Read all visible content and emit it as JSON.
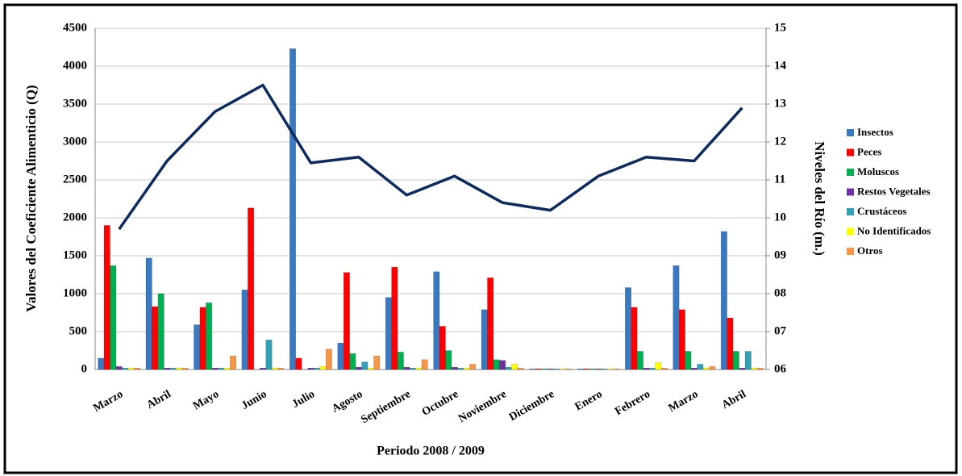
{
  "chart_data": {
    "type": "bar-line",
    "categories": [
      "Marzo",
      "Abril",
      "Mayo",
      "Junio",
      "Julio",
      "Agosto",
      "Septiembre",
      "Octubre",
      "Noviembre",
      "Diciembre",
      "Enero",
      "Febrero",
      "Marzo",
      "Abril"
    ],
    "x_label": "Periodo 2008 / 2009",
    "y_label": "Valores del Coeficiente Alimenticio (Q)",
    "y2_label": "Niveles del Río (m.)",
    "ylim": [
      0,
      4500
    ],
    "yticks": [
      0,
      500,
      1000,
      1500,
      2000,
      2500,
      3000,
      3500,
      4000,
      4500
    ],
    "y2lim": [
      6,
      15
    ],
    "y2ticks": [
      {
        "value": 6,
        "label": "06"
      },
      {
        "value": 7,
        "label": "07"
      },
      {
        "value": 8,
        "label": "08"
      },
      {
        "value": 9,
        "label": "09"
      },
      10,
      11,
      12,
      13,
      14,
      15
    ],
    "grid": true,
    "legend": "right",
    "series": [
      {
        "name": "Insectos",
        "color": "#3a78c0",
        "values": [
          150,
          1470,
          590,
          1050,
          4230,
          350,
          950,
          1290,
          790,
          10,
          10,
          1080,
          1370,
          1820
        ]
      },
      {
        "name": "Peces",
        "color": "#ff0000",
        "values": [
          1900,
          830,
          820,
          2130,
          150,
          1280,
          1350,
          570,
          1210,
          10,
          10,
          820,
          790,
          680
        ]
      },
      {
        "name": "Moluscos",
        "color": "#00b050",
        "values": [
          1370,
          1000,
          880,
          0,
          0,
          210,
          230,
          250,
          130,
          10,
          10,
          240,
          240,
          240
        ]
      },
      {
        "name": "Restos Vegetales",
        "color": "#7030a0",
        "values": [
          40,
          20,
          20,
          20,
          20,
          30,
          30,
          30,
          120,
          10,
          10,
          20,
          20,
          20
        ]
      },
      {
        "name": "Crustáceos",
        "color": "#31a0b5",
        "values": [
          20,
          20,
          20,
          390,
          20,
          100,
          20,
          20,
          30,
          10,
          10,
          20,
          70,
          240
        ]
      },
      {
        "name": "No Identificados",
        "color": "#ffff00",
        "values": [
          20,
          20,
          20,
          20,
          40,
          20,
          20,
          20,
          70,
          10,
          10,
          90,
          20,
          20
        ]
      },
      {
        "name": "Otros",
        "color": "#f79646",
        "values": [
          20,
          20,
          180,
          20,
          270,
          180,
          130,
          70,
          20,
          10,
          10,
          20,
          40,
          20
        ]
      },
      {
        "name": "Nivel del Río",
        "type": "line",
        "axis": "y2",
        "color": "#0d2b5e",
        "values": [
          9.7,
          11.5,
          12.8,
          13.5,
          11.45,
          11.6,
          10.6,
          11.1,
          10.4,
          10.2,
          11.1,
          11.6,
          11.5,
          12.9
        ]
      }
    ]
  }
}
